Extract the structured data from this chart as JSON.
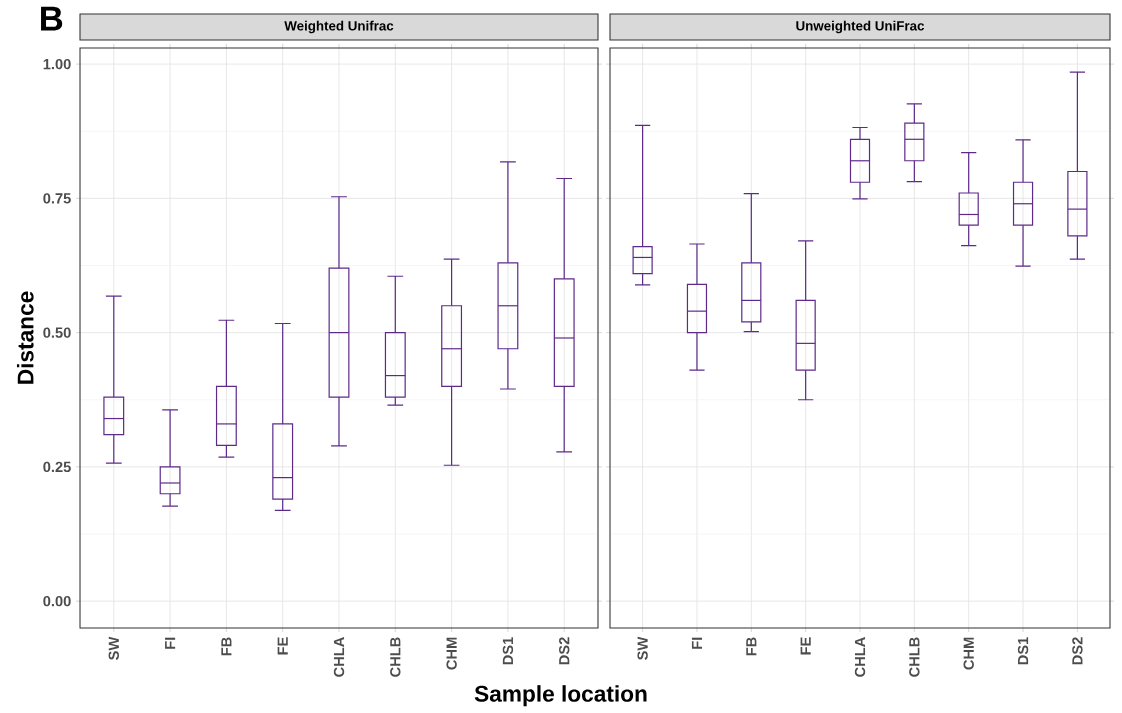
{
  "chart_data": [
    {
      "type": "box",
      "title": "Weighted Unifrac",
      "ylabel": "Distance",
      "xlabel": "Sample location",
      "annotations": [
        "B"
      ],
      "categories": [
        "SW",
        "FI",
        "FB",
        "FE",
        "CHLA",
        "CHLB",
        "CHM",
        "DS1",
        "DS2"
      ],
      "color": "#5e2a8a",
      "grid": true,
      "ylim": [
        -0.05,
        1.03
      ],
      "yticks": [
        {
          "value": 0,
          "label": "0.00"
        },
        {
          "value": 0.25,
          "label": "0.25"
        },
        {
          "value": 0.5,
          "label": "0.50"
        },
        {
          "value": 0.75,
          "label": "0.75"
        },
        {
          "value": 1,
          "label": "1.00"
        }
      ],
      "boxes": [
        {
          "low": 0.257,
          "q1": 0.31,
          "median": 0.34,
          "q3": 0.38,
          "high": 0.568
        },
        {
          "low": 0.177,
          "q1": 0.2,
          "median": 0.22,
          "q3": 0.25,
          "high": 0.356
        },
        {
          "low": 0.268,
          "q1": 0.29,
          "median": 0.33,
          "q3": 0.4,
          "high": 0.523
        },
        {
          "low": 0.169,
          "q1": 0.19,
          "median": 0.23,
          "q3": 0.33,
          "high": 0.517
        },
        {
          "low": 0.289,
          "q1": 0.38,
          "median": 0.5,
          "q3": 0.62,
          "high": 0.753
        },
        {
          "low": 0.365,
          "q1": 0.38,
          "median": 0.42,
          "q3": 0.5,
          "high": 0.605
        },
        {
          "low": 0.253,
          "q1": 0.4,
          "median": 0.47,
          "q3": 0.55,
          "high": 0.637
        },
        {
          "low": 0.395,
          "q1": 0.47,
          "median": 0.55,
          "q3": 0.63,
          "high": 0.818
        },
        {
          "low": 0.278,
          "q1": 0.4,
          "median": 0.49,
          "q3": 0.6,
          "high": 0.787
        }
      ]
    },
    {
      "type": "box",
      "title": "Unweighted UniFrac",
      "categories": [
        "SW",
        "FI",
        "FB",
        "FE",
        "CHLA",
        "CHLB",
        "CHM",
        "DS1",
        "DS2"
      ],
      "color": "#5e2a8a",
      "grid": true,
      "tick_labels": "x",
      "ylim": [
        -0.05,
        1.03
      ],
      "yticks": [
        0,
        0.25,
        0.5,
        0.75,
        1
      ],
      "boxes": [
        {
          "low": 0.589,
          "q1": 0.61,
          "median": 0.64,
          "q3": 0.66,
          "high": 0.886
        },
        {
          "low": 0.43,
          "q1": 0.5,
          "median": 0.54,
          "q3": 0.59,
          "high": 0.665
        },
        {
          "low": 0.502,
          "q1": 0.52,
          "median": 0.56,
          "q3": 0.63,
          "high": 0.759
        },
        {
          "low": 0.375,
          "q1": 0.43,
          "median": 0.48,
          "q3": 0.56,
          "high": 0.671
        },
        {
          "low": 0.749,
          "q1": 0.78,
          "median": 0.82,
          "q3": 0.86,
          "high": 0.882
        },
        {
          "low": 0.781,
          "q1": 0.82,
          "median": 0.86,
          "q3": 0.89,
          "high": 0.926
        },
        {
          "low": 0.662,
          "q1": 0.7,
          "median": 0.72,
          "q3": 0.76,
          "high": 0.835
        },
        {
          "low": 0.624,
          "q1": 0.7,
          "median": 0.74,
          "q3": 0.78,
          "high": 0.859
        },
        {
          "low": 0.637,
          "q1": 0.68,
          "median": 0.73,
          "q3": 0.8,
          "high": 0.985
        }
      ]
    }
  ]
}
